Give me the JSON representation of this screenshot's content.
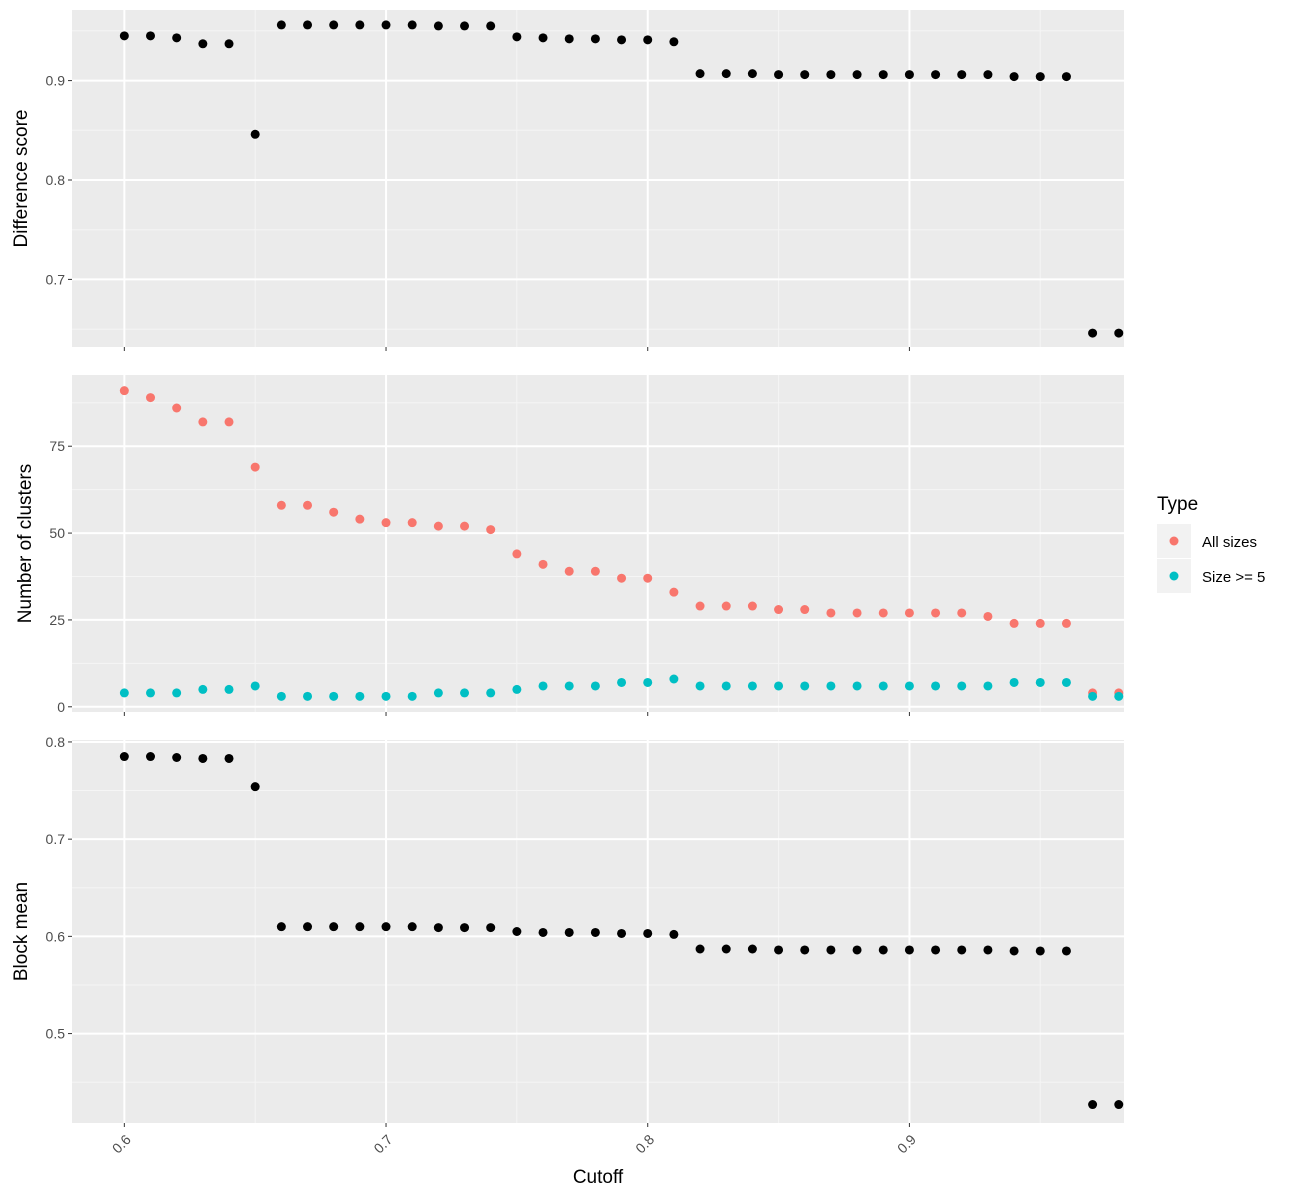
{
  "colors": {
    "panel_bg": "#EBEBEB",
    "grid_major": "#FFFFFF",
    "grid_minor": "#F5F5F5",
    "tick": "#333333",
    "black_points": "#000000",
    "all_sizes": "#F8766D",
    "size_ge_5": "#00BFC4"
  },
  "chart_data": [
    {
      "type": "scatter",
      "panel": "top",
      "ylabel": "Difference score",
      "xlim": [
        0.58,
        0.982
      ],
      "ylim": [
        0.632,
        0.971
      ],
      "y_ticks": [
        "0.7",
        "0.8",
        "0.9"
      ],
      "y_tick_values": [
        0.7,
        0.8,
        0.9
      ],
      "x_ticks": [
        0.6,
        0.7,
        0.8,
        0.9
      ],
      "show_x_tick_labels": false,
      "series": [
        {
          "color": "#000000",
          "x": [
            0.6,
            0.61,
            0.62,
            0.63,
            0.64,
            0.65,
            0.66,
            0.67,
            0.68,
            0.69,
            0.7,
            0.71,
            0.72,
            0.73,
            0.74,
            0.75,
            0.76,
            0.77,
            0.78,
            0.79,
            0.8,
            0.81,
            0.82,
            0.83,
            0.84,
            0.85,
            0.86,
            0.87,
            0.88,
            0.89,
            0.9,
            0.91,
            0.92,
            0.93,
            0.94,
            0.95,
            0.96,
            0.97,
            0.98
          ],
          "y": [
            0.945,
            0.945,
            0.943,
            0.937,
            0.937,
            0.846,
            0.956,
            0.956,
            0.956,
            0.956,
            0.956,
            0.956,
            0.955,
            0.955,
            0.955,
            0.944,
            0.943,
            0.942,
            0.942,
            0.941,
            0.941,
            0.939,
            0.907,
            0.907,
            0.907,
            0.906,
            0.906,
            0.906,
            0.906,
            0.906,
            0.906,
            0.906,
            0.906,
            0.906,
            0.904,
            0.904,
            0.904,
            0.646,
            0.646
          ]
        }
      ]
    },
    {
      "type": "scatter",
      "panel": "middle",
      "ylabel": "Number of clusters",
      "xlim": [
        0.58,
        0.982
      ],
      "ylim": [
        -1.5,
        95.5
      ],
      "y_ticks": [
        "0",
        "25",
        "50",
        "75"
      ],
      "y_tick_values": [
        0,
        25,
        50,
        75
      ],
      "x_ticks": [
        0.6,
        0.7,
        0.8,
        0.9
      ],
      "show_x_tick_labels": false,
      "legend": {
        "title": "Type",
        "placement": "right"
      },
      "series": [
        {
          "name": "All sizes",
          "color": "#F8766D",
          "x": [
            0.6,
            0.61,
            0.62,
            0.63,
            0.64,
            0.65,
            0.66,
            0.67,
            0.68,
            0.69,
            0.7,
            0.71,
            0.72,
            0.73,
            0.74,
            0.75,
            0.76,
            0.77,
            0.78,
            0.79,
            0.8,
            0.81,
            0.82,
            0.83,
            0.84,
            0.85,
            0.86,
            0.87,
            0.88,
            0.89,
            0.9,
            0.91,
            0.92,
            0.93,
            0.94,
            0.95,
            0.96,
            0.97,
            0.98
          ],
          "y": [
            91,
            89,
            86,
            82,
            82,
            69,
            58,
            58,
            56,
            54,
            53,
            53,
            52,
            52,
            51,
            44,
            41,
            39,
            39,
            37,
            37,
            33,
            29,
            29,
            29,
            28,
            28,
            27,
            27,
            27,
            27,
            27,
            27,
            26,
            24,
            24,
            24,
            4,
            4
          ]
        },
        {
          "name": "Size >= 5",
          "color": "#00BFC4",
          "x": [
            0.6,
            0.61,
            0.62,
            0.63,
            0.64,
            0.65,
            0.66,
            0.67,
            0.68,
            0.69,
            0.7,
            0.71,
            0.72,
            0.73,
            0.74,
            0.75,
            0.76,
            0.77,
            0.78,
            0.79,
            0.8,
            0.81,
            0.82,
            0.83,
            0.84,
            0.85,
            0.86,
            0.87,
            0.88,
            0.89,
            0.9,
            0.91,
            0.92,
            0.93,
            0.94,
            0.95,
            0.96,
            0.97,
            0.98
          ],
          "y": [
            4,
            4,
            4,
            5,
            5,
            6,
            3,
            3,
            3,
            3,
            3,
            3,
            4,
            4,
            4,
            5,
            6,
            6,
            6,
            7,
            7,
            8,
            6,
            6,
            6,
            6,
            6,
            6,
            6,
            6,
            6,
            6,
            6,
            6,
            7,
            7,
            7,
            3,
            3
          ]
        }
      ]
    },
    {
      "type": "scatter",
      "panel": "bottom",
      "ylabel": "Block mean",
      "xlabel": "Cutoff",
      "xlim": [
        0.58,
        0.982
      ],
      "ylim": [
        0.408,
        0.802
      ],
      "y_ticks": [
        "0.5",
        "0.6",
        "0.7",
        "0.8"
      ],
      "y_tick_values": [
        0.5,
        0.6,
        0.7,
        0.8
      ],
      "x_ticks": [
        0.6,
        0.7,
        0.8,
        0.9
      ],
      "x_tick_labels": [
        "0.6",
        "0.7",
        "0.8",
        "0.9"
      ],
      "show_x_tick_labels": true,
      "series": [
        {
          "color": "#000000",
          "x": [
            0.6,
            0.61,
            0.62,
            0.63,
            0.64,
            0.65,
            0.66,
            0.67,
            0.68,
            0.69,
            0.7,
            0.71,
            0.72,
            0.73,
            0.74,
            0.75,
            0.76,
            0.77,
            0.78,
            0.79,
            0.8,
            0.81,
            0.82,
            0.83,
            0.84,
            0.85,
            0.86,
            0.87,
            0.88,
            0.89,
            0.9,
            0.91,
            0.92,
            0.93,
            0.94,
            0.95,
            0.96,
            0.97,
            0.98
          ],
          "y": [
            0.785,
            0.785,
            0.784,
            0.783,
            0.783,
            0.754,
            0.61,
            0.61,
            0.61,
            0.61,
            0.61,
            0.61,
            0.609,
            0.609,
            0.609,
            0.605,
            0.604,
            0.604,
            0.604,
            0.603,
            0.603,
            0.602,
            0.587,
            0.587,
            0.587,
            0.586,
            0.586,
            0.586,
            0.586,
            0.586,
            0.586,
            0.586,
            0.586,
            0.586,
            0.585,
            0.585,
            0.585,
            0.427,
            0.427
          ]
        }
      ]
    }
  ]
}
